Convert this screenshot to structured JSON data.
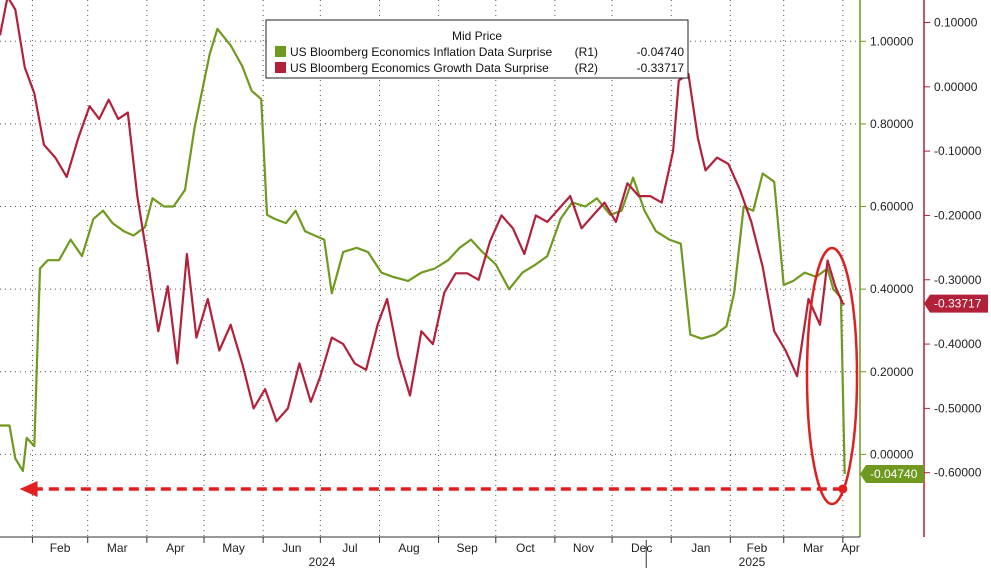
{
  "chart_data": {
    "type": "line",
    "legend": {
      "title": "Mid Price",
      "placement": "top-center",
      "entries": [
        {
          "label": "US Bloomberg Economics Inflation Data Surprise",
          "axis": "(R1)",
          "last": "-0.04740",
          "color": "#6f9a1f"
        },
        {
          "label": "US Bloomberg Economics Growth Data Surprise",
          "axis": "(R2)",
          "last": "-0.33717",
          "color": "#b3203a"
        }
      ]
    },
    "x_axis": {
      "months": [
        "Feb",
        "Mar",
        "Apr",
        "May",
        "Jun",
        "Jul",
        "Aug",
        "Sep",
        "Oct",
        "Nov",
        "Dec",
        "Jan",
        "Feb",
        "Mar",
        "Apr"
      ],
      "years": [
        "2024",
        "2025"
      ],
      "range": [
        "2024-01-15",
        "2025-04-10"
      ]
    },
    "y_axis_r1": {
      "ticks": [
        "1.00000",
        "0.80000",
        "0.60000",
        "0.40000",
        "0.20000",
        "0.00000"
      ],
      "tick_values": [
        1.0,
        0.8,
        0.6,
        0.4,
        0.2,
        0.0
      ],
      "range": [
        -0.2,
        1.1
      ],
      "color": "#6f9a1f"
    },
    "y_axis_r2": {
      "ticks": [
        "0.10000",
        "0.00000",
        "-0.10000",
        "-0.20000",
        "-0.30000",
        "-0.40000",
        "-0.50000",
        "-0.60000"
      ],
      "tick_values": [
        0.1,
        0.0,
        -0.1,
        -0.2,
        -0.3,
        -0.4,
        -0.5,
        -0.6
      ],
      "range": [
        -0.7,
        0.135
      ],
      "color": "#b3203a"
    },
    "badges": {
      "r1_last": "-0.04740",
      "r2_last": "-0.33717"
    },
    "grid": true,
    "series": [
      {
        "name": "US Bloomberg Economics Inflation Data Surprise",
        "axis": "R1",
        "color": "#6f9a1f",
        "x": [
          "2024-01-15",
          "2024-01-20",
          "2024-01-23",
          "2024-01-27",
          "2024-01-29",
          "2024-02-02",
          "2024-02-05",
          "2024-02-09",
          "2024-02-15",
          "2024-02-21",
          "2024-02-27",
          "2024-03-04",
          "2024-03-09",
          "2024-03-14",
          "2024-03-20",
          "2024-03-25",
          "2024-03-31",
          "2024-04-04",
          "2024-04-10",
          "2024-04-15",
          "2024-04-21",
          "2024-04-26",
          "2024-04-30",
          "2024-05-04",
          "2024-05-08",
          "2024-05-15",
          "2024-05-21",
          "2024-05-26",
          "2024-05-31",
          "2024-06-03",
          "2024-06-07",
          "2024-06-13",
          "2024-06-18",
          "2024-06-23",
          "2024-06-28",
          "2024-07-03",
          "2024-07-07",
          "2024-07-13",
          "2024-07-20",
          "2024-07-26",
          "2024-08-02",
          "2024-08-08",
          "2024-08-16",
          "2024-08-23",
          "2024-08-30",
          "2024-09-06",
          "2024-09-12",
          "2024-09-18",
          "2024-09-24",
          "2024-10-01",
          "2024-10-08",
          "2024-10-15",
          "2024-10-22",
          "2024-10-28",
          "2024-11-04",
          "2024-11-10",
          "2024-11-17",
          "2024-11-23",
          "2024-11-30",
          "2024-12-06",
          "2024-12-12",
          "2024-12-18",
          "2024-12-24",
          "2024-12-31",
          "2025-01-06",
          "2025-01-11",
          "2025-01-17",
          "2025-01-24",
          "2025-01-30",
          "2025-02-03",
          "2025-02-08",
          "2025-02-13",
          "2025-02-18",
          "2025-02-24",
          "2025-03-01",
          "2025-03-06",
          "2025-03-12",
          "2025-03-18",
          "2025-03-24",
          "2025-03-27",
          "2025-03-31",
          "2025-04-02"
        ],
        "values": [
          0.07,
          0.07,
          -0.01,
          -0.04,
          0.04,
          0.02,
          0.45,
          0.47,
          0.47,
          0.52,
          0.48,
          0.57,
          0.59,
          0.56,
          0.54,
          0.53,
          0.55,
          0.62,
          0.6,
          0.6,
          0.64,
          0.79,
          0.88,
          0.97,
          1.03,
          0.99,
          0.94,
          0.88,
          0.86,
          0.58,
          0.57,
          0.56,
          0.59,
          0.54,
          0.53,
          0.52,
          0.39,
          0.49,
          0.5,
          0.49,
          0.44,
          0.43,
          0.42,
          0.44,
          0.45,
          0.47,
          0.5,
          0.52,
          0.49,
          0.46,
          0.4,
          0.44,
          0.46,
          0.48,
          0.57,
          0.61,
          0.6,
          0.62,
          0.58,
          0.59,
          0.67,
          0.59,
          0.54,
          0.52,
          0.51,
          0.29,
          0.28,
          0.29,
          0.31,
          0.39,
          0.6,
          0.59,
          0.68,
          0.66,
          0.41,
          0.42,
          0.44,
          0.43,
          0.45,
          0.4,
          0.38,
          -0.0474
        ]
      },
      {
        "name": "US Bloomberg Economics Growth Data Surprise",
        "axis": "R2",
        "color": "#b3203a",
        "x": [
          "2024-01-15",
          "2024-01-19",
          "2024-01-23",
          "2024-01-28",
          "2024-02-02",
          "2024-02-07",
          "2024-02-13",
          "2024-02-19",
          "2024-02-25",
          "2024-03-02",
          "2024-03-07",
          "2024-03-12",
          "2024-03-17",
          "2024-03-22",
          "2024-03-27",
          "2024-04-02",
          "2024-04-07",
          "2024-04-12",
          "2024-04-17",
          "2024-04-22",
          "2024-04-27",
          "2024-05-03",
          "2024-05-09",
          "2024-05-15",
          "2024-05-21",
          "2024-05-27",
          "2024-06-02",
          "2024-06-08",
          "2024-06-14",
          "2024-06-20",
          "2024-06-26",
          "2024-07-01",
          "2024-07-07",
          "2024-07-13",
          "2024-07-19",
          "2024-07-25",
          "2024-07-31",
          "2024-08-05",
          "2024-08-11",
          "2024-08-17",
          "2024-08-23",
          "2024-08-29",
          "2024-09-04",
          "2024-09-10",
          "2024-09-16",
          "2024-09-22",
          "2024-09-28",
          "2024-10-04",
          "2024-10-10",
          "2024-10-16",
          "2024-10-22",
          "2024-10-28",
          "2024-11-03",
          "2024-11-09",
          "2024-11-15",
          "2024-11-21",
          "2024-11-27",
          "2024-12-03",
          "2024-12-09",
          "2024-12-15",
          "2024-12-21",
          "2024-12-27",
          "2025-01-02",
          "2025-01-05",
          "2025-01-10",
          "2025-01-15",
          "2025-01-19",
          "2025-01-25",
          "2025-01-31",
          "2025-02-06",
          "2025-02-12",
          "2025-02-18",
          "2025-02-24",
          "2025-03-02",
          "2025-03-08",
          "2025-03-14",
          "2025-03-20",
          "2025-03-24",
          "2025-03-28",
          "2025-04-01",
          "2025-04-02"
        ],
        "values": [
          0.08,
          0.14,
          0.12,
          0.03,
          -0.01,
          -0.09,
          -0.11,
          -0.14,
          -0.08,
          -0.03,
          -0.05,
          -0.02,
          -0.05,
          -0.04,
          -0.17,
          -0.28,
          -0.38,
          -0.31,
          -0.43,
          -0.26,
          -0.39,
          -0.33,
          -0.41,
          -0.37,
          -0.43,
          -0.5,
          -0.47,
          -0.52,
          -0.5,
          -0.43,
          -0.49,
          -0.45,
          -0.39,
          -0.4,
          -0.43,
          -0.44,
          -0.37,
          -0.33,
          -0.42,
          -0.48,
          -0.38,
          -0.4,
          -0.32,
          -0.29,
          -0.29,
          -0.3,
          -0.24,
          -0.2,
          -0.22,
          -0.26,
          -0.2,
          -0.21,
          -0.19,
          -0.17,
          -0.22,
          -0.2,
          -0.18,
          -0.21,
          -0.15,
          -0.17,
          -0.17,
          -0.18,
          -0.1,
          0.01,
          0.02,
          -0.08,
          -0.13,
          -0.11,
          -0.12,
          -0.16,
          -0.21,
          -0.28,
          -0.38,
          -0.41,
          -0.45,
          -0.33,
          -0.37,
          -0.27,
          -0.31,
          -0.33717,
          -0.33717
        ]
      }
    ],
    "annotations": {
      "dashed_arrow": {
        "from": {
          "date": "2025-04-01",
          "value": -0.0474,
          "axis": "R1"
        },
        "to": {
          "date": "2024-01-20",
          "value": -0.0474,
          "axis": "R1"
        },
        "color": "#e02020"
      },
      "highlight_ellipse": {
        "center_date": "2025-04-01",
        "color": "#e02020"
      }
    }
  }
}
